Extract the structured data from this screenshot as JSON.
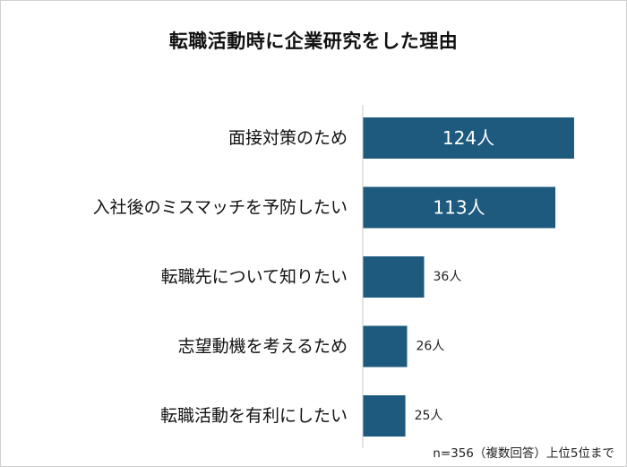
{
  "title": "転職活動時に企業研究をした理由",
  "footnote": "n=356（複数回答）上位5位まで",
  "colors": {
    "bar": "#1d5a7e",
    "axis": "#c8c8c8",
    "label_inside": "#ffffff",
    "label_outside": "#222222"
  },
  "chart_data": {
    "type": "bar",
    "orientation": "horizontal",
    "categories": [
      "面接対策のため",
      "入社後のミスマッチを予防したい",
      "転職先について知りたい",
      "志望動機を考えるため",
      "転職活動を有利にしたい"
    ],
    "values": [
      124,
      113,
      36,
      26,
      25
    ],
    "data_labels": [
      "124人",
      "113人",
      "36人",
      "26人",
      "25人"
    ],
    "unit": "人",
    "title": "転職活動時に企業研究をした理由",
    "xlabel": "",
    "ylabel": "",
    "xlim": [
      0,
      134
    ],
    "grid": false,
    "legend": "none"
  }
}
